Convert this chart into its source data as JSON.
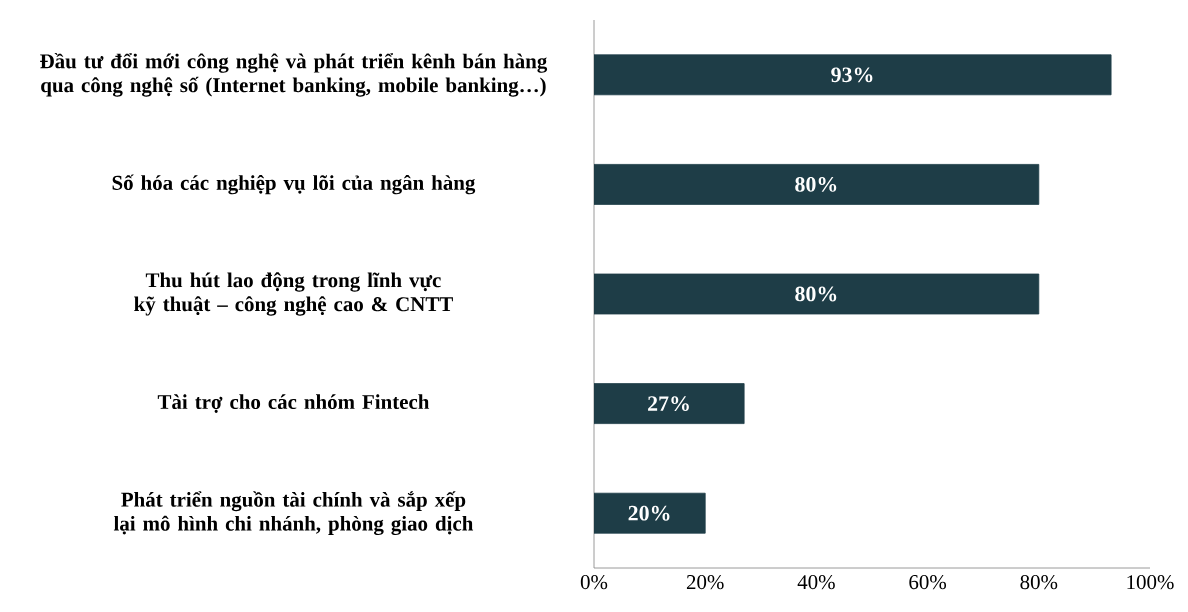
{
  "chart_data": {
    "type": "bar",
    "orientation": "horizontal",
    "categories": [
      "Đầu tư đổi mới công nghệ và phát triển kênh bán hàng qua công nghệ số (Internet banking, mobile banking…)",
      "Số hóa các nghiệp vụ lõi của ngân hàng",
      "Thu hút lao động trong lĩnh vực kỹ thuật – công nghệ cao & CNTT",
      "Tài trợ cho các nhóm Fintech",
      "Phát triển nguồn tài chính và sắp xếp lại mô hình chi nhánh, phòng giao dịch"
    ],
    "values": [
      93,
      80,
      80,
      27,
      20
    ],
    "value_labels": [
      "93%",
      "80%",
      "80%",
      "27%",
      "20%"
    ],
    "color": "#1e3d47",
    "xlim": [
      0,
      100
    ],
    "xticks": [
      {
        "value": 0,
        "label": "0%"
      },
      {
        "value": 20,
        "label": "20%"
      },
      {
        "value": 40,
        "label": "40%"
      },
      {
        "value": 60,
        "label": "60%"
      },
      {
        "value": 80,
        "label": "80%"
      },
      {
        "value": 100,
        "label": "100%"
      }
    ]
  }
}
